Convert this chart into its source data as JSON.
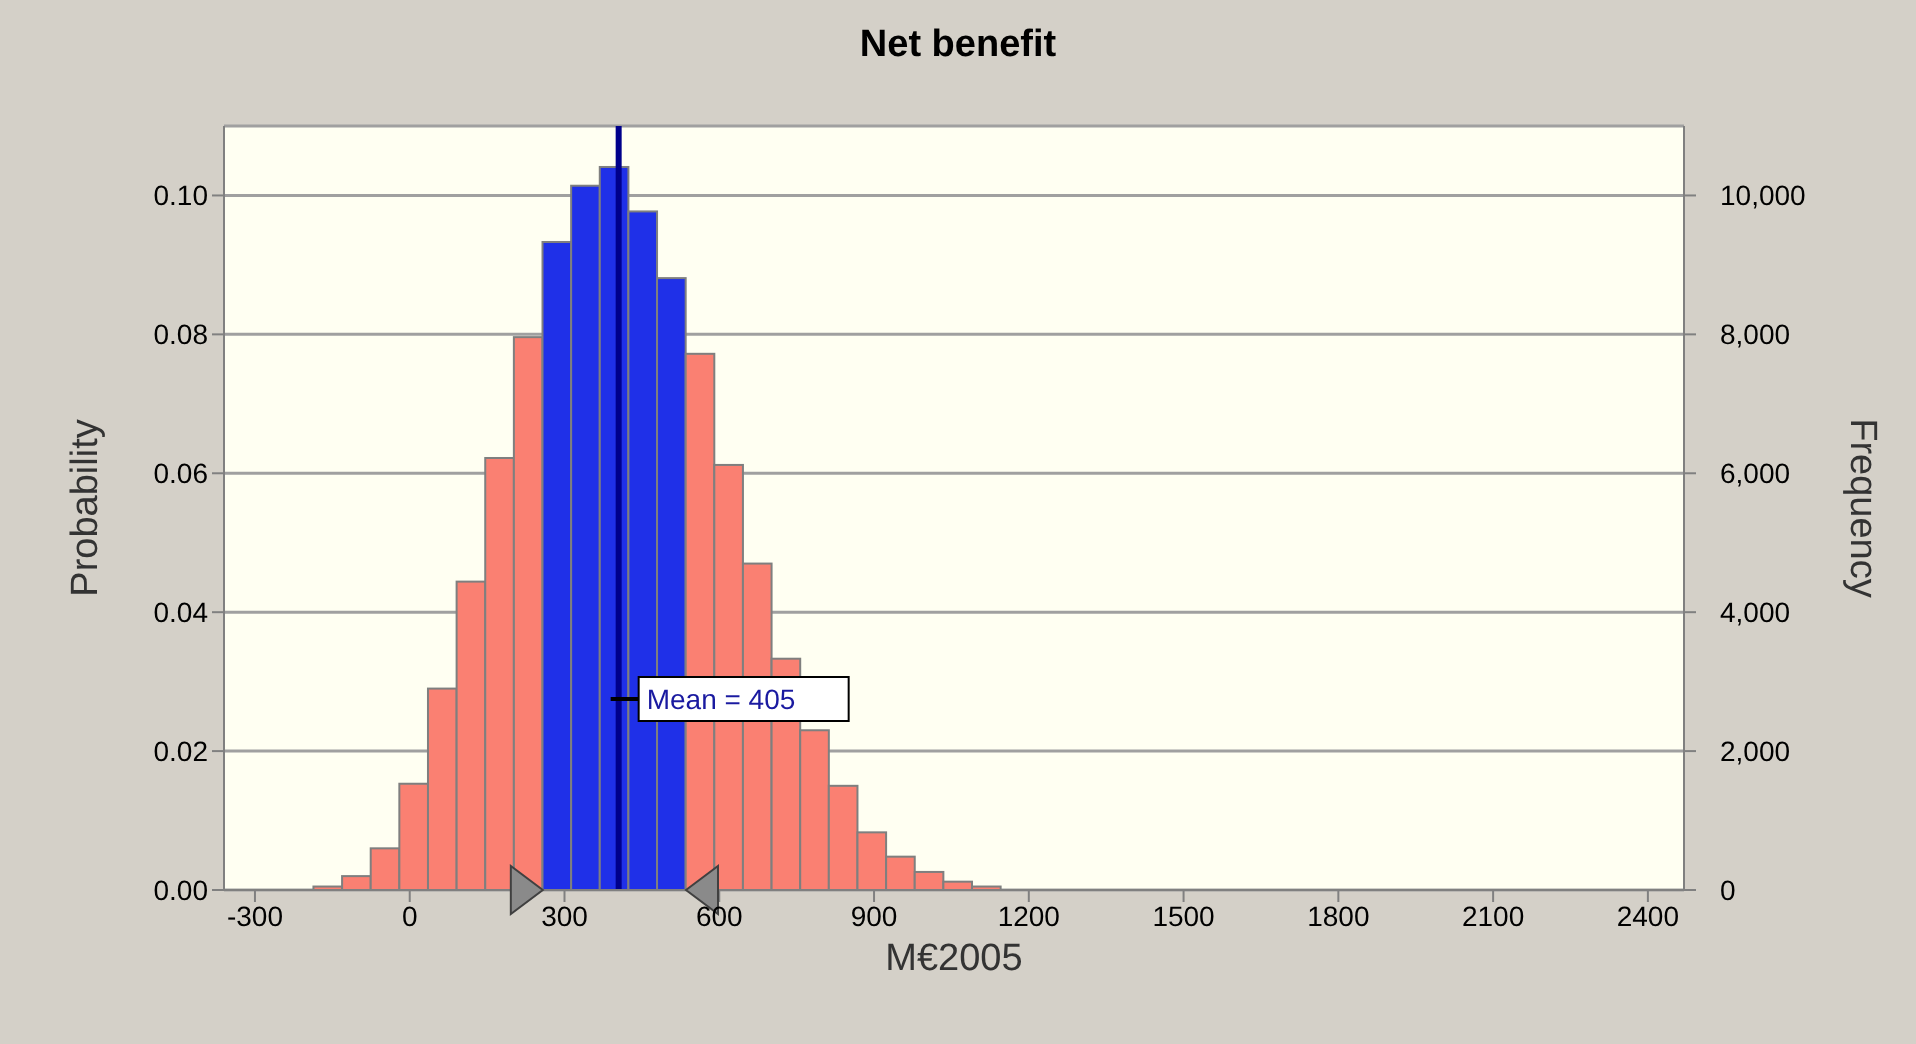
{
  "chart_data": {
    "type": "histogram",
    "title": "Net benefit",
    "xlabel": "M€2005",
    "ylabel": "Probability",
    "y2label": "Frequency",
    "bins": [
      -186,
      -130.5,
      -75,
      -19.5,
      36,
      91.5,
      147,
      202.5,
      258,
      313.5,
      369,
      424.5,
      480,
      535.5,
      591,
      646.5,
      702,
      757.5,
      813,
      868.5,
      924,
      979.5,
      1035,
      1090.5,
      1146
    ],
    "values": [
      0.0005,
      0.002,
      0.006,
      0.0153,
      0.029,
      0.0444,
      0.0622,
      0.0796,
      0.0933,
      0.1014,
      0.1041,
      0.0977,
      0.0881,
      0.0772,
      0.0612,
      0.047,
      0.0333,
      0.023,
      0.015,
      0.0083,
      0.0048,
      0.0026,
      0.0012,
      0.0005
    ],
    "colors": [
      "#fa8072",
      "#fa8072",
      "#fa8072",
      "#fa8072",
      "#fa8072",
      "#fa8072",
      "#fa8072",
      "#fa8072",
      "#1f30e8",
      "#1f30e8",
      "#1f30e8",
      "#1f30e8",
      "#1f30e8",
      "#fa8072",
      "#fa8072",
      "#fa8072",
      "#fa8072",
      "#fa8072",
      "#fa8072",
      "#fa8072",
      "#fa8072",
      "#fa8072",
      "#fa8072",
      "#fa8072"
    ],
    "xlim": [
      -360,
      2470
    ],
    "xticks": [
      -300,
      0,
      300,
      600,
      900,
      1200,
      1500,
      1800,
      2100,
      2400
    ],
    "ylim": [
      0,
      0.11
    ],
    "yticks": [
      {
        "value": 0,
        "label": "0.00"
      },
      {
        "value": 0.02,
        "label": "0.02"
      },
      {
        "value": 0.04,
        "label": "0.04"
      },
      {
        "value": 0.06,
        "label": "0.06"
      },
      {
        "value": 0.08,
        "label": "0.08"
      },
      {
        "value": 0.1,
        "label": "0.10"
      }
    ],
    "y2lim": [
      0,
      11000
    ],
    "y2ticks": [
      0,
      {
        "value": 2000,
        "label": "2,000"
      },
      {
        "value": 4000,
        "label": "4,000"
      },
      {
        "value": 6000,
        "label": "6,000"
      },
      {
        "value": 8000,
        "label": "8,000"
      },
      {
        "value": 10000,
        "label": "10,000"
      }
    ],
    "ref_lines": [
      {
        "axis": "x",
        "value": 405,
        "label": "Mean = 405",
        "color": "#00008b"
      }
    ],
    "grid": "y"
  }
}
